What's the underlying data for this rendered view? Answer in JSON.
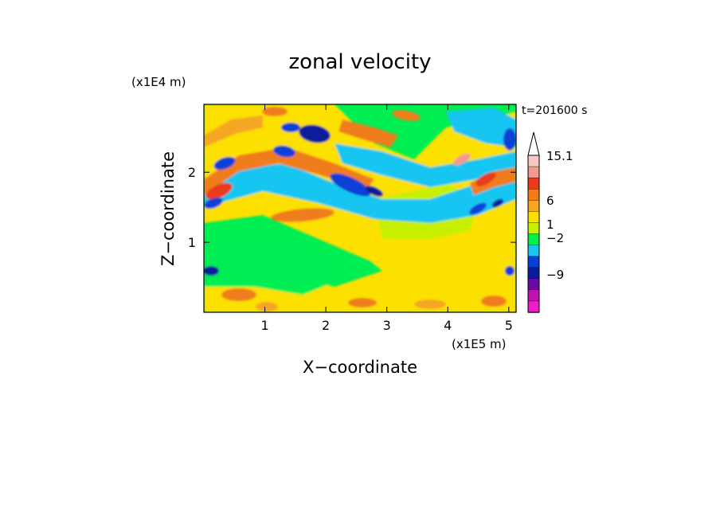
{
  "chart_data": {
    "type": "heatmap",
    "title": "zonal velocity",
    "xlabel": "X−coordinate",
    "ylabel": "Z−coordinate",
    "x_scale_label": "(x1E5 m)",
    "y_scale_label": "(x1E4 m)",
    "time_label": "t=201600 s",
    "xlim": [
      0,
      5.12
    ],
    "ylim": [
      0,
      2.97
    ],
    "x_ticks": [
      1,
      2,
      3,
      4,
      5
    ],
    "x_tick_labels": [
      "1",
      "2",
      "3",
      "4",
      "5"
    ],
    "y_ticks": [
      1,
      2
    ],
    "y_tick_labels": [
      "1",
      "2"
    ],
    "colorbar": {
      "labels": [
        "15.1",
        "6",
        "1",
        "−2",
        "−9"
      ],
      "levels_top_to_bottom": [
        {
          "color": "#f6c8c4"
        },
        {
          "color": "#f29a8e"
        },
        {
          "color": "#ea3a1c"
        },
        {
          "color": "#f07d1c"
        },
        {
          "color": "#f5a623"
        },
        {
          "color": "#fbe000"
        },
        {
          "color": "#c6f000"
        },
        {
          "color": "#00f04a"
        },
        {
          "color": "#19c6f0"
        },
        {
          "color": "#0a3fd6"
        },
        {
          "color": "#0a1a9a"
        },
        {
          "color": "#6a0aa0"
        },
        {
          "color": "#c012b0"
        },
        {
          "color": "#f01ec8"
        }
      ]
    },
    "background_color": "#00ee52"
  }
}
